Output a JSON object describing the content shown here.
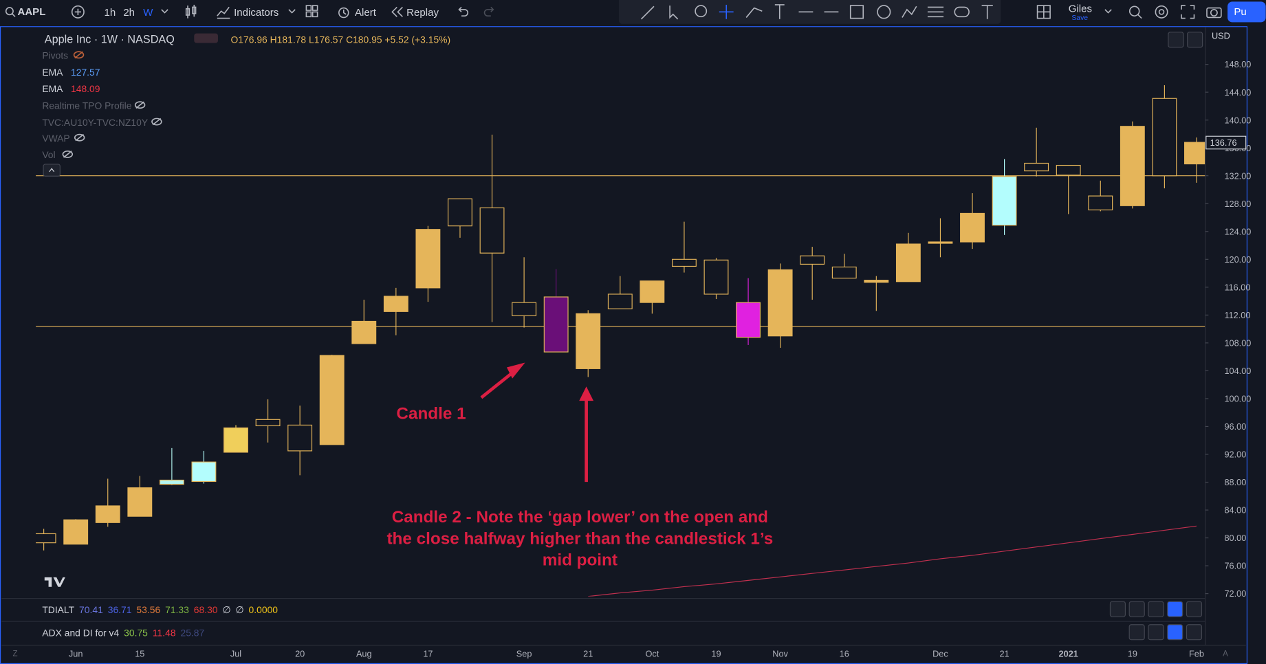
{
  "toolbar": {
    "symbol": "AAPL",
    "intervals": [
      "1h",
      "2h",
      "W"
    ],
    "indicators": "Indicators",
    "alert": "Alert",
    "replay": "Replay",
    "user": "Giles",
    "save": "Save",
    "account": "Pu"
  },
  "legend": {
    "title": "Apple Inc · 1W · NASDAQ",
    "open": "O176.96",
    "high": "H181.78",
    "low": "L176.57",
    "close": "C180.95",
    "change": "+5.52 (+3.15%)",
    "indicators": [
      {
        "name": "Pivots"
      },
      {
        "name": "EMA",
        "value": "127.57"
      },
      {
        "name": "EMA",
        "value": "148.09"
      },
      {
        "name": "Realtime TPO Profile"
      },
      {
        "name": "TVC:AU10Y-TVC:NZ10Y"
      },
      {
        "name": "VWAP"
      },
      {
        "name": "Vol"
      }
    ]
  },
  "currency": "USD",
  "panes": [
    {
      "name": "TDIALT",
      "values": [
        "70.41",
        "36.71",
        "53.56",
        "71.33",
        "68.30",
        "∅",
        "∅",
        "0.0000"
      ],
      "colors": [
        "#6a76e0",
        "#4c63e6",
        "#e07a3a",
        "#7cb342",
        "#e53935",
        "#d1d4dc",
        "#d1d4dc",
        "#f0c419"
      ]
    },
    {
      "name": "ADX and DI for v4",
      "values": [
        "30.75",
        "11.48",
        "25.87"
      ],
      "colors": [
        "#8bc34a",
        "#f23645",
        "#3f4a80"
      ]
    }
  ],
  "bottom": {
    "left": "Z",
    "right": "A"
  },
  "chart_data": {
    "type": "candlestick",
    "categories": [
      null,
      "Jun",
      null,
      "15",
      null,
      null,
      "Jul",
      null,
      "20",
      null,
      "Aug",
      null,
      "17",
      null,
      null,
      "Sep",
      null,
      "21",
      null,
      "Oct",
      null,
      "19",
      null,
      "Nov",
      null,
      "16",
      null,
      null,
      "Dec",
      null,
      "21",
      null,
      "2021",
      null,
      "19",
      null,
      "Feb"
    ],
    "open": [
      80.6,
      79.1,
      82.2,
      83.1,
      87.7,
      88.1,
      92.3,
      97.0,
      96.2,
      93.4,
      107.9,
      112.5,
      115.9,
      128.7,
      127.4,
      113.8,
      114.6,
      104.3,
      115.0,
      113.8,
      120.0,
      119.9,
      113.8,
      109.0,
      120.5,
      118.9,
      116.7,
      116.8,
      122.3,
      122.5,
      124.9,
      133.8,
      133.5,
      129.1,
      127.7,
      143.1,
      133.7
    ],
    "high": [
      81.3,
      82.7,
      88.5,
      88.9,
      92.9,
      92.5,
      96.2,
      99.9,
      99.0,
      106.3,
      114.2,
      115.9,
      124.8,
      128.7,
      137.9,
      120.3,
      118.6,
      112.7,
      117.6,
      116.9,
      125.4,
      120.2,
      117.3,
      119.4,
      121.8,
      120.8,
      117.6,
      123.8,
      125.9,
      129.5,
      134.4,
      138.9,
      133.5,
      131.3,
      139.8,
      145.0,
      137.5
    ],
    "low": [
      78.2,
      79.1,
      81.6,
      83.1,
      87.6,
      87.8,
      92.3,
      93.7,
      89.0,
      93.4,
      107.9,
      109.1,
      113.9,
      123.1,
      111.0,
      110.2,
      106.7,
      103.1,
      112.9,
      112.2,
      118.1,
      114.3,
      107.7,
      107.3,
      114.2,
      117.3,
      112.6,
      116.8,
      120.3,
      121.5,
      123.5,
      131.9,
      126.5,
      126.9,
      127.3,
      130.2,
      131.0
    ],
    "close": [
      79.3,
      82.6,
      84.6,
      87.2,
      88.3,
      90.9,
      95.8,
      96.1,
      92.5,
      106.2,
      111.1,
      114.7,
      124.3,
      124.8,
      120.9,
      111.9,
      106.7,
      112.2,
      112.9,
      116.9,
      119.0,
      115.0,
      108.8,
      118.5,
      119.3,
      117.3,
      117.0,
      122.2,
      122.5,
      126.6,
      131.9,
      132.7,
      132.1,
      127.1,
      139.1,
      132.0,
      136.8
    ],
    "colors": [
      "#e5b55a",
      "#e5b55a",
      "#e5b55a",
      "#e5b55a",
      "#b3f5f0",
      "#b3fdfd",
      "#f0cf5b",
      "#e5b55a",
      "#e5b55a",
      "#e5b55a",
      "#e5b55a",
      "#e5b55a",
      "#e5b55a",
      "#e5b55a",
      "#e5b55a",
      "#e5b55a",
      "#6a0f78",
      "#e5b55a",
      "#e5b55a",
      "#e5b55a",
      "#e5b55a",
      "#e5b55a",
      "#e021e0",
      "#e5b55a",
      "#e5b55a",
      "#e5b55a",
      "#e5b55a",
      "#e5b55a",
      "#e5b55a",
      "#e5b55a",
      "#b3fdfd",
      "#e5b55a",
      "#e5b55a",
      "#e5b55a",
      "#e5b55a",
      "#e5b55a",
      "#e5b55a"
    ],
    "ema": {
      "color": "#c2304f",
      "values": [
        null,
        null,
        null,
        null,
        null,
        null,
        null,
        null,
        null,
        null,
        null,
        null,
        null,
        null,
        null,
        null,
        null,
        71.6,
        72.1,
        72.5,
        73.0,
        73.4,
        73.9,
        74.4,
        74.9,
        75.4,
        75.9,
        76.4,
        77.0,
        77.5,
        78.1,
        78.7,
        79.3,
        79.9,
        80.5,
        81.1,
        81.7
      ]
    },
    "hlines": [
      132.0,
      110.4
    ],
    "hline_color": "#e5b55a",
    "last_price": 136.76,
    "ylim": [
      71.6,
      152.9
    ],
    "yticks": [
      {
        "value": 72,
        "label": "72.00"
      },
      {
        "value": 76,
        "label": "76.00"
      },
      {
        "value": 80,
        "label": "80.00"
      },
      {
        "value": 84,
        "label": "84.00"
      },
      {
        "value": 88,
        "label": "88.00"
      },
      {
        "value": 92,
        "label": "92.00"
      },
      {
        "value": 96,
        "label": "96.00"
      },
      {
        "value": 100,
        "label": "100.00"
      },
      {
        "value": 104,
        "label": "104.00"
      },
      {
        "value": 108,
        "label": "108.00"
      },
      {
        "value": 112,
        "label": "112.00"
      },
      {
        "value": 116,
        "label": "116.00"
      },
      {
        "value": 120,
        "label": "120.00"
      },
      {
        "value": 124,
        "label": "124.00"
      },
      {
        "value": 128,
        "label": "128.00"
      },
      {
        "value": 132,
        "label": "132.00"
      },
      {
        "value": 136,
        "label": "136.00"
      },
      {
        "value": 140,
        "label": "140.00"
      },
      {
        "value": 144,
        "label": "144.00"
      },
      {
        "value": 148,
        "label": "148.00"
      }
    ],
    "annotations": {
      "candle1": "Candle 1",
      "candle2": [
        "Candle 2 - Note the ‘gap lower’ on the open and",
        "the close halfway higher than the candlestick 1’s",
        "mid point"
      ]
    }
  }
}
